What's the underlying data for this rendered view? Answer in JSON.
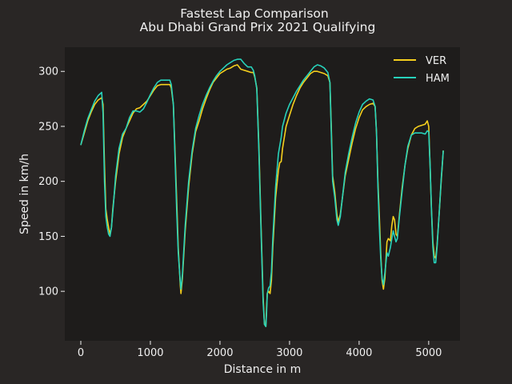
{
  "chart_data": {
    "type": "line",
    "title": "Fastest Lap Comparison",
    "subtitle": "Abu Dhabi Grand Prix 2021 Qualifying",
    "xlabel": "Distance in m",
    "ylabel": "Speed in km/h",
    "xlim": [
      -230,
      5450
    ],
    "ylim": [
      55,
      322
    ],
    "xticks": [
      0,
      1000,
      2000,
      3000,
      4000,
      5000
    ],
    "yticks": [
      100,
      150,
      200,
      250,
      300
    ],
    "grid": false,
    "legend": "top-right",
    "series": [
      {
        "name": "VER",
        "color": "#f5cf1d",
        "points": [
          [
            0,
            233
          ],
          [
            50,
            244
          ],
          [
            100,
            255
          ],
          [
            150,
            263
          ],
          [
            200,
            270
          ],
          [
            250,
            274
          ],
          [
            300,
            276
          ],
          [
            320,
            270
          ],
          [
            340,
            215
          ],
          [
            360,
            175
          ],
          [
            380,
            165
          ],
          [
            400,
            158
          ],
          [
            420,
            152
          ],
          [
            440,
            158
          ],
          [
            460,
            175
          ],
          [
            500,
            200
          ],
          [
            550,
            225
          ],
          [
            600,
            240
          ],
          [
            650,
            248
          ],
          [
            700,
            255
          ],
          [
            750,
            262
          ],
          [
            800,
            266
          ],
          [
            850,
            267
          ],
          [
            900,
            270
          ],
          [
            950,
            273
          ],
          [
            1000,
            278
          ],
          [
            1050,
            283
          ],
          [
            1100,
            287
          ],
          [
            1150,
            288
          ],
          [
            1200,
            288
          ],
          [
            1250,
            288
          ],
          [
            1280,
            288
          ],
          [
            1300,
            285
          ],
          [
            1330,
            270
          ],
          [
            1350,
            235
          ],
          [
            1380,
            180
          ],
          [
            1400,
            140
          ],
          [
            1430,
            105
          ],
          [
            1440,
            98
          ],
          [
            1460,
            112
          ],
          [
            1500,
            155
          ],
          [
            1550,
            195
          ],
          [
            1600,
            225
          ],
          [
            1650,
            245
          ],
          [
            1700,
            255
          ],
          [
            1750,
            266
          ],
          [
            1800,
            275
          ],
          [
            1850,
            283
          ],
          [
            1900,
            290
          ],
          [
            1950,
            294
          ],
          [
            2000,
            298
          ],
          [
            2050,
            300
          ],
          [
            2100,
            302
          ],
          [
            2150,
            303
          ],
          [
            2200,
            305
          ],
          [
            2250,
            306
          ],
          [
            2300,
            302
          ],
          [
            2350,
            301
          ],
          [
            2400,
            300
          ],
          [
            2450,
            299
          ],
          [
            2480,
            299
          ],
          [
            2500,
            295
          ],
          [
            2530,
            285
          ],
          [
            2560,
            230
          ],
          [
            2590,
            160
          ],
          [
            2620,
            95
          ],
          [
            2640,
            70
          ],
          [
            2660,
            68
          ],
          [
            2670,
            85
          ],
          [
            2680,
            98
          ],
          [
            2700,
            100
          ],
          [
            2720,
            98
          ],
          [
            2740,
            110
          ],
          [
            2760,
            140
          ],
          [
            2800,
            185
          ],
          [
            2840,
            210
          ],
          [
            2860,
            217
          ],
          [
            2880,
            218
          ],
          [
            2900,
            230
          ],
          [
            2950,
            250
          ],
          [
            3000,
            260
          ],
          [
            3050,
            270
          ],
          [
            3100,
            278
          ],
          [
            3150,
            285
          ],
          [
            3200,
            290
          ],
          [
            3250,
            294
          ],
          [
            3300,
            298
          ],
          [
            3350,
            300
          ],
          [
            3400,
            300
          ],
          [
            3450,
            299
          ],
          [
            3500,
            298
          ],
          [
            3550,
            296
          ],
          [
            3580,
            290
          ],
          [
            3600,
            250
          ],
          [
            3620,
            205
          ],
          [
            3650,
            190
          ],
          [
            3680,
            170
          ],
          [
            3700,
            163
          ],
          [
            3730,
            170
          ],
          [
            3760,
            185
          ],
          [
            3800,
            205
          ],
          [
            3850,
            220
          ],
          [
            3900,
            235
          ],
          [
            3950,
            248
          ],
          [
            4000,
            258
          ],
          [
            4050,
            265
          ],
          [
            4100,
            268
          ],
          [
            4150,
            270
          ],
          [
            4200,
            271
          ],
          [
            4230,
            268
          ],
          [
            4250,
            245
          ],
          [
            4270,
            200
          ],
          [
            4290,
            170
          ],
          [
            4310,
            135
          ],
          [
            4330,
            110
          ],
          [
            4350,
            102
          ],
          [
            4370,
            112
          ],
          [
            4400,
            145
          ],
          [
            4420,
            148
          ],
          [
            4450,
            146
          ],
          [
            4470,
            160
          ],
          [
            4490,
            168
          ],
          [
            4510,
            165
          ],
          [
            4530,
            152
          ],
          [
            4550,
            150
          ],
          [
            4580,
            170
          ],
          [
            4620,
            195
          ],
          [
            4660,
            215
          ],
          [
            4700,
            230
          ],
          [
            4750,
            242
          ],
          [
            4800,
            248
          ],
          [
            4850,
            250
          ],
          [
            4900,
            251
          ],
          [
            4950,
            252
          ],
          [
            4980,
            255
          ],
          [
            5000,
            250
          ],
          [
            5020,
            215
          ],
          [
            5040,
            175
          ],
          [
            5060,
            145
          ],
          [
            5080,
            132
          ],
          [
            5100,
            130
          ],
          [
            5120,
            142
          ],
          [
            5150,
            170
          ],
          [
            5180,
            200
          ],
          [
            5210,
            228
          ]
        ]
      },
      {
        "name": "HAM",
        "color": "#27d2bb",
        "points": [
          [
            0,
            233
          ],
          [
            50,
            246
          ],
          [
            100,
            257
          ],
          [
            150,
            265
          ],
          [
            200,
            273
          ],
          [
            250,
            278
          ],
          [
            300,
            281
          ],
          [
            320,
            262
          ],
          [
            340,
            200
          ],
          [
            360,
            168
          ],
          [
            380,
            158
          ],
          [
            400,
            152
          ],
          [
            420,
            150
          ],
          [
            440,
            158
          ],
          [
            470,
            180
          ],
          [
            500,
            205
          ],
          [
            550,
            230
          ],
          [
            600,
            243
          ],
          [
            650,
            248
          ],
          [
            700,
            258
          ],
          [
            750,
            264
          ],
          [
            800,
            264
          ],
          [
            850,
            263
          ],
          [
            900,
            266
          ],
          [
            950,
            272
          ],
          [
            1000,
            279
          ],
          [
            1050,
            285
          ],
          [
            1100,
            290
          ],
          [
            1150,
            292
          ],
          [
            1200,
            292
          ],
          [
            1250,
            292
          ],
          [
            1280,
            292
          ],
          [
            1300,
            288
          ],
          [
            1330,
            270
          ],
          [
            1350,
            230
          ],
          [
            1380,
            170
          ],
          [
            1400,
            135
          ],
          [
            1430,
            108
          ],
          [
            1440,
            102
          ],
          [
            1460,
            115
          ],
          [
            1500,
            160
          ],
          [
            1550,
            200
          ],
          [
            1600,
            228
          ],
          [
            1650,
            248
          ],
          [
            1700,
            260
          ],
          [
            1750,
            270
          ],
          [
            1800,
            278
          ],
          [
            1850,
            285
          ],
          [
            1900,
            291
          ],
          [
            1950,
            296
          ],
          [
            2000,
            300
          ],
          [
            2050,
            303
          ],
          [
            2100,
            306
          ],
          [
            2150,
            308
          ],
          [
            2200,
            310
          ],
          [
            2250,
            311
          ],
          [
            2300,
            311
          ],
          [
            2350,
            307
          ],
          [
            2400,
            304
          ],
          [
            2450,
            304
          ],
          [
            2480,
            301
          ],
          [
            2500,
            296
          ],
          [
            2530,
            284
          ],
          [
            2560,
            225
          ],
          [
            2590,
            155
          ],
          [
            2620,
            90
          ],
          [
            2640,
            70
          ],
          [
            2660,
            68
          ],
          [
            2670,
            80
          ],
          [
            2680,
            98
          ],
          [
            2700,
            103
          ],
          [
            2720,
            105
          ],
          [
            2740,
            118
          ],
          [
            2760,
            148
          ],
          [
            2800,
            195
          ],
          [
            2840,
            225
          ],
          [
            2880,
            240
          ],
          [
            2900,
            250
          ],
          [
            2950,
            262
          ],
          [
            3000,
            270
          ],
          [
            3050,
            276
          ],
          [
            3100,
            282
          ],
          [
            3150,
            287
          ],
          [
            3200,
            292
          ],
          [
            3250,
            296
          ],
          [
            3300,
            300
          ],
          [
            3350,
            304
          ],
          [
            3400,
            306
          ],
          [
            3450,
            305
          ],
          [
            3500,
            303
          ],
          [
            3550,
            299
          ],
          [
            3580,
            290
          ],
          [
            3600,
            245
          ],
          [
            3620,
            200
          ],
          [
            3650,
            185
          ],
          [
            3680,
            165
          ],
          [
            3700,
            160
          ],
          [
            3730,
            168
          ],
          [
            3760,
            185
          ],
          [
            3800,
            208
          ],
          [
            3850,
            225
          ],
          [
            3900,
            240
          ],
          [
            3950,
            253
          ],
          [
            4000,
            263
          ],
          [
            4050,
            270
          ],
          [
            4100,
            273
          ],
          [
            4150,
            275
          ],
          [
            4200,
            274
          ],
          [
            4230,
            268
          ],
          [
            4250,
            245
          ],
          [
            4270,
            195
          ],
          [
            4290,
            160
          ],
          [
            4310,
            130
          ],
          [
            4330,
            112
          ],
          [
            4350,
            106
          ],
          [
            4370,
            117
          ],
          [
            4400,
            135
          ],
          [
            4420,
            132
          ],
          [
            4450,
            140
          ],
          [
            4470,
            148
          ],
          [
            4490,
            155
          ],
          [
            4510,
            150
          ],
          [
            4530,
            145
          ],
          [
            4550,
            148
          ],
          [
            4580,
            168
          ],
          [
            4620,
            192
          ],
          [
            4660,
            215
          ],
          [
            4700,
            232
          ],
          [
            4750,
            242
          ],
          [
            4800,
            244
          ],
          [
            4850,
            244
          ],
          [
            4900,
            244
          ],
          [
            4950,
            243
          ],
          [
            4980,
            246
          ],
          [
            5000,
            245
          ],
          [
            5020,
            215
          ],
          [
            5040,
            175
          ],
          [
            5060,
            140
          ],
          [
            5080,
            126
          ],
          [
            5100,
            126
          ],
          [
            5120,
            140
          ],
          [
            5150,
            170
          ],
          [
            5180,
            202
          ],
          [
            5210,
            228
          ]
        ]
      }
    ]
  }
}
